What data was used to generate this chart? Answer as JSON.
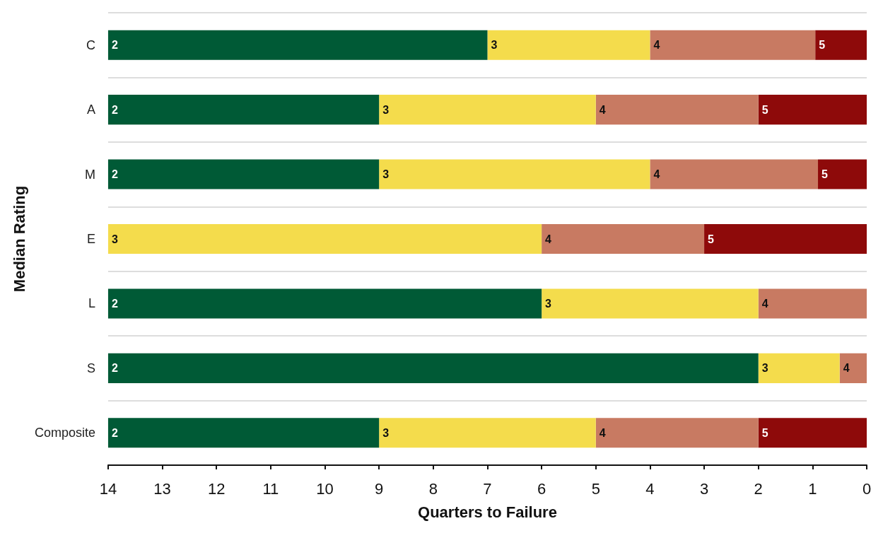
{
  "chart_data": {
    "type": "bar",
    "orientation": "horizontal",
    "stacked": true,
    "xlabel": "Quarters to Failure",
    "ylabel": "Median Rating",
    "categories": [
      "C",
      "A",
      "M",
      "E",
      "L",
      "S",
      "Composite"
    ],
    "series": [
      {
        "name": "5",
        "color": "#8e0a0a",
        "values": [
          0.95,
          2,
          0.9,
          3,
          null,
          null,
          2
        ]
      },
      {
        "name": "4",
        "color": "#c87a62",
        "values": [
          3.05,
          3,
          3.1,
          3,
          2,
          0.5,
          3
        ]
      },
      {
        "name": "3",
        "color": "#f4dc4c",
        "values": [
          3,
          4,
          5,
          8,
          4,
          1.5,
          4
        ]
      },
      {
        "name": "2",
        "color": "#005a36",
        "values": [
          7,
          5,
          5,
          null,
          8,
          12,
          5
        ]
      }
    ],
    "xlim": [
      14,
      0
    ],
    "xticks": [
      14,
      13,
      12,
      11,
      10,
      9,
      8,
      7,
      6,
      5,
      4,
      3,
      2,
      1,
      0
    ],
    "grid": "y"
  }
}
